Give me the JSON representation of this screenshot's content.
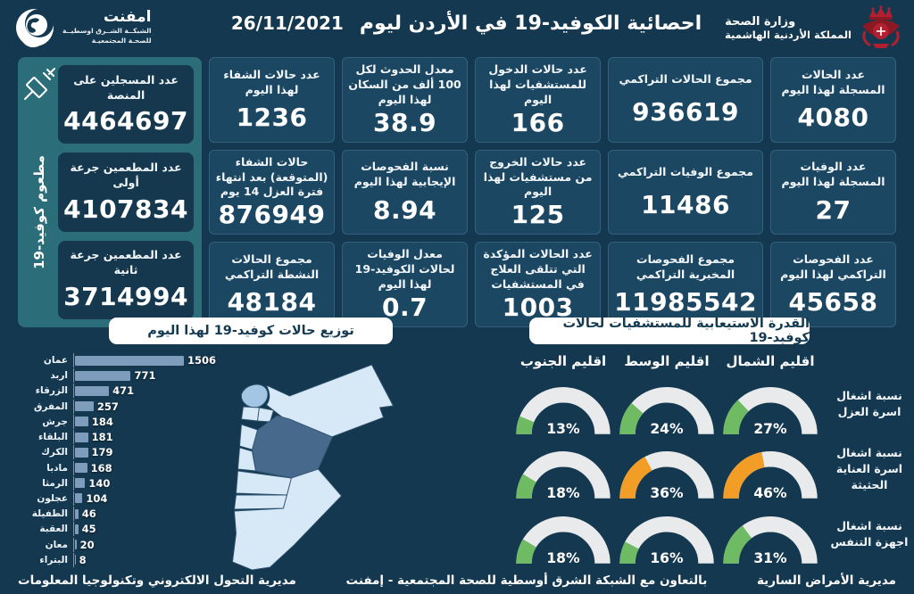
{
  "header": {
    "title": "احصائية الكوفيد-19 في الأردن ليوم",
    "date": "26/11/2021",
    "ministry": {
      "line1": "وزارة الصحة",
      "line2": "المملكة الأردنية الهاشمية"
    },
    "emphnet": {
      "name": "امفنت",
      "line1": "الشبكــة الشــرق اوسطيــة",
      "line2": "للصحـة المجتمعيـة"
    }
  },
  "vaccination": {
    "side_label": "مطعوم كوفيد-19",
    "cards": [
      {
        "label": "عدد المسجلين على المنصة",
        "value": "4464697"
      },
      {
        "label": "عدد المطعمين جرعة أولى",
        "value": "4107834"
      },
      {
        "label": "عدد المطعمين جرعة ثانية",
        "value": "3714994"
      }
    ]
  },
  "stats": {
    "columns": [
      [
        {
          "label": "عدد الحالات المسجلة لهذا اليوم",
          "value": "4080"
        },
        {
          "label": "عدد الوفيات المسجلة لهذا اليوم",
          "value": "27"
        },
        {
          "label": "عدد الفحوصات التراكمي لهذا اليوم",
          "value": "45658"
        }
      ],
      [
        {
          "label": "مجموع الحالات التراكمي",
          "value": "936619"
        },
        {
          "label": "مجموع الوفيات التراكمي",
          "value": "11486"
        },
        {
          "label": "مجموع الفحوصات المخبرية التراكمي",
          "value": "11985542"
        }
      ],
      [
        {
          "label": "عدد حالات الدخول للمستشفيات لهذا اليوم",
          "value": "166"
        },
        {
          "label": "عدد حالات الخروج من مستشفيات لهذا اليوم",
          "value": "125"
        },
        {
          "label": "عدد الحالات المؤكدة التي تتلقى العلاج في المستشفيات",
          "value": "1003"
        }
      ],
      [
        {
          "label": "معدل الحدوث لكل 100 ألف من السكان لهذا اليوم",
          "value": "38.9"
        },
        {
          "label": "نسبة الفحوصات الإيجابية لهذا اليوم",
          "value": "8.94"
        },
        {
          "label": "معدل الوفيات لحالات الكوفيد-19 لهذا اليوم",
          "value": "0.7"
        }
      ],
      [
        {
          "label": "عدد حالات الشفاء لهذا اليوم",
          "value": "1236"
        },
        {
          "label": "حالات الشفاء (المتوقعة) بعد انتهاء فترة العزل 14 يوم",
          "value": "876949"
        },
        {
          "label": "مجموع الحالات النشطة التراكمي",
          "value": "48184"
        }
      ]
    ]
  },
  "chart_data": [
    {
      "type": "bar",
      "orientation": "horizontal",
      "title": "توزيع حالات كوفيد-19 لهذا اليوم",
      "categories": [
        "عمان",
        "اربد",
        "الزرقاء",
        "المفرق",
        "جرش",
        "البلقاء",
        "الكرك",
        "مادبا",
        "الرمثا",
        "عجلون",
        "الطفيلة",
        "العقبة",
        "معان",
        "البتراء"
      ],
      "values": [
        1506,
        771,
        471,
        257,
        184,
        181,
        179,
        168,
        140,
        104,
        46,
        45,
        20,
        8
      ],
      "xlim": [
        0,
        1506
      ],
      "bar_color": "#7e9cbc",
      "legend": "none",
      "grid": false
    },
    {
      "type": "table",
      "style": "semicircle-gauges",
      "title": "القدرة الاستيعابية للمستشفيات لحالات كوفيد-19",
      "columns": [
        "اقليم الشمال",
        "اقليم الوسط",
        "اقليم الجنوب"
      ],
      "unit": "%",
      "rows": [
        {
          "label": "نسبة اشغال اسرة العزل",
          "values": [
            27,
            24,
            13
          ],
          "levels": [
            "green",
            "green",
            "green"
          ]
        },
        {
          "label": "نسبة اشغال اسرة العناية الحثيثة",
          "values": [
            46,
            36,
            18
          ],
          "levels": [
            "orange",
            "orange",
            "green"
          ]
        },
        {
          "label": "نسبة اشغال اجهزة التنفس",
          "values": [
            31,
            16,
            18
          ],
          "levels": [
            "green",
            "green",
            "green"
          ]
        }
      ]
    }
  ],
  "palette": {
    "background": "#14384f",
    "card": "#1c4763",
    "teal_panel": "#2b6e79",
    "bar": "#7e9cbc",
    "gauge_green": "#6fbb63",
    "gauge_orange": "#f29d26",
    "gauge_track": "#e8eaec",
    "map_default": "#d7e8f6",
    "map_amman": "#47698c",
    "map_irbid": "#a3c6e4",
    "map_zarqa": "#bdd8ee"
  },
  "footer": {
    "right": "مديرية الأمراض السارية",
    "center": "بالتعاون مع الشبكة الشرق أوسطية للصحة المجتمعية - إمفنت",
    "left": "مديرية التحول الالكتروني وتكنولوجيا المعلومات"
  }
}
